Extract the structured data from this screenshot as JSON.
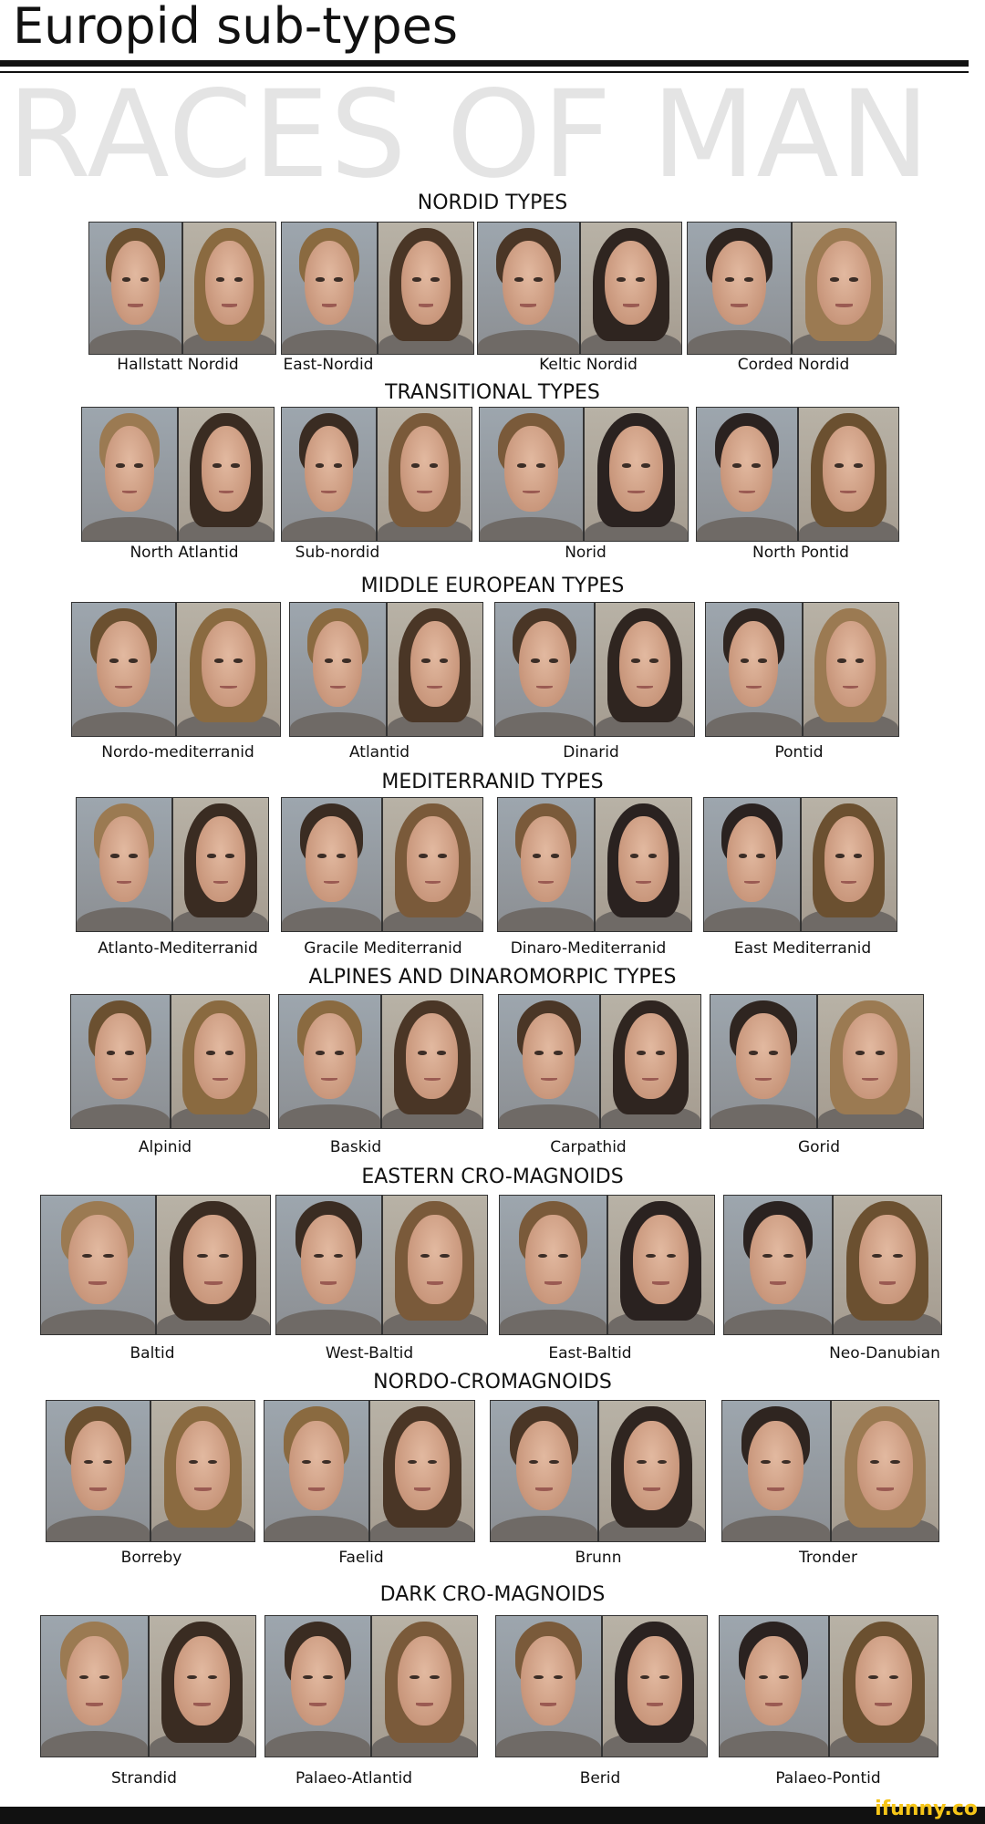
{
  "title": "Europid sub-types",
  "watermark": "RACES OF MAN",
  "sections": [
    {
      "title": "NORDID TYPES",
      "types": [
        "Hallstatt Nordid",
        "East-Nordid",
        "Keltic Nordid",
        "Corded Nordid"
      ]
    },
    {
      "title": "TRANSITIONAL TYPES",
      "types": [
        "North Atlantid",
        "Sub-nordid",
        "Norid",
        "North Pontid"
      ]
    },
    {
      "title": "MIDDLE EUROPEAN TYPES",
      "types": [
        "Nordo-mediterranid",
        "Atlantid",
        "Dinarid",
        "Pontid"
      ]
    },
    {
      "title": "MEDITERRANID TYPES",
      "types": [
        "Atlanto-Mediterranid",
        "Gracile Mediterranid",
        "Dinaro-Mediterranid",
        "East Mediterranid"
      ]
    },
    {
      "title": "ALPINES AND DINAROMORPIC TYPES",
      "types": [
        "Alpinid",
        "Baskid",
        "Carpathid",
        "Gorid"
      ]
    },
    {
      "title": "EASTERN CRO-MAGNOIDS",
      "types": [
        "Baltid",
        "West-Baltid",
        "East-Baltid",
        "Neo-Danubian"
      ]
    },
    {
      "title": "NORDO-CROMAGNOIDS",
      "types": [
        "Borreby",
        "Faelid",
        "Brunn",
        "Tronder"
      ]
    },
    {
      "title": "DARK CRO-MAGNOIDS",
      "types": [
        "Strandid",
        "Palaeo-Atlantid",
        "Berid",
        "Palaeo-Pontid"
      ]
    }
  ],
  "footer": {
    "brand": "ifunny.co",
    "background": "#111111",
    "brand_color": "#f5c518"
  }
}
